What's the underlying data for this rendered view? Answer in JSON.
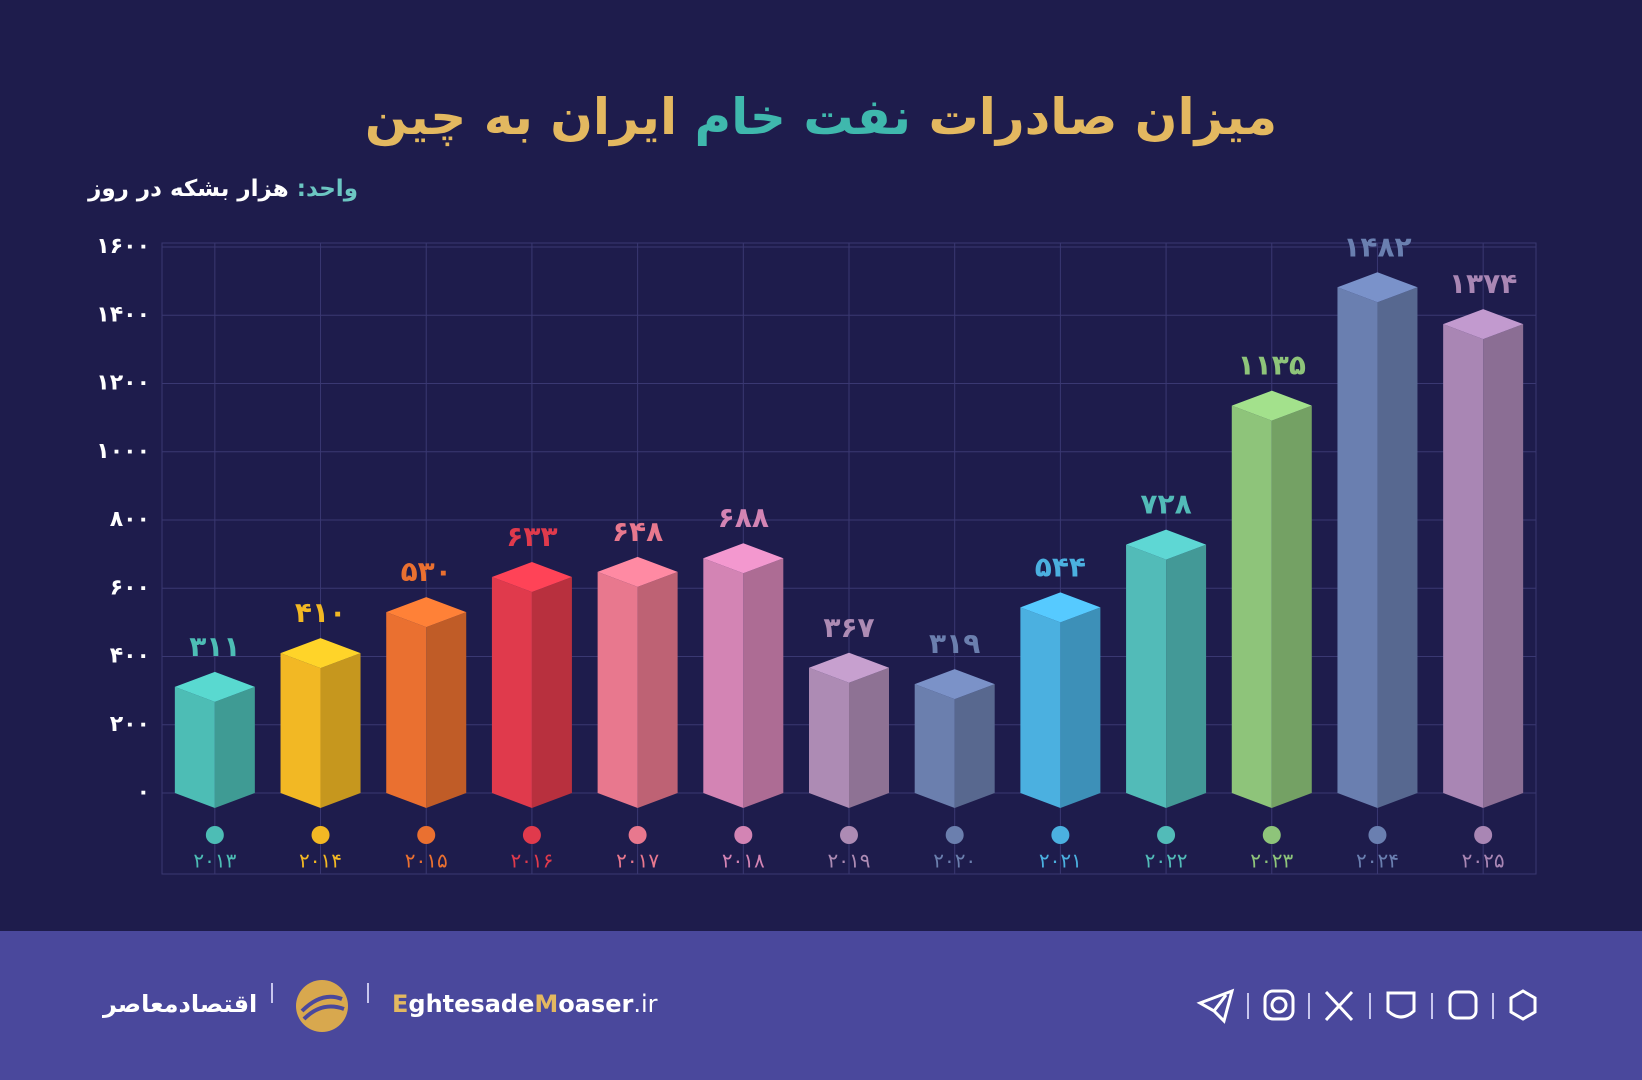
{
  "chart_data": {
    "type": "bar",
    "title_parts": [
      "میزان صادرات ",
      "نفت خام",
      " ایران به چین"
    ],
    "unit_label": "واحد:",
    "unit": "هزار بشکه در روز",
    "categories": [
      "۲۰۱۳",
      "۲۰۱۴",
      "۲۰۱۵",
      "۲۰۱۶",
      "۲۰۱۷",
      "۲۰۱۸",
      "۲۰۱۹",
      "۲۰۲۰",
      "۲۰۲۱",
      "۲۰۲۲",
      "۲۰۲۳",
      "۲۰۲۴",
      "۲۰۲۵"
    ],
    "values": [
      311,
      410,
      530,
      633,
      648,
      688,
      367,
      319,
      544,
      728,
      1135,
      1482,
      1374
    ],
    "value_labels": [
      "۳۱۱",
      "۴۱۰",
      "۵۳۰",
      "۶۳۳",
      "۶۴۸",
      "۶۸۸",
      "۳۶۷",
      "۳۱۹",
      "۵۴۴",
      "۷۲۸",
      "۱۱۳۵",
      "۱۴۸۲",
      "۱۳۷۴"
    ],
    "colors": [
      "#4dbdb5",
      "#f2b824",
      "#ea7030",
      "#e03a4c",
      "#e8788e",
      "#d384b4",
      "#ad8bb4",
      "#6b7fae",
      "#4bb0e0",
      "#52bbb8",
      "#8ec47a",
      "#6a7fb0",
      "#a986b4"
    ],
    "ylim": [
      0,
      1600
    ],
    "yticks": [
      {
        "value": 0,
        "label": "۰"
      },
      {
        "value": 200,
        "label": "۲۰۰"
      },
      {
        "value": 400,
        "label": "۴۰۰"
      },
      {
        "value": 600,
        "label": "۶۰۰"
      },
      {
        "value": 800,
        "label": "۸۰۰"
      },
      {
        "value": 1000,
        "label": "۱۰۰۰"
      },
      {
        "value": 1200,
        "label": "۱۲۰۰"
      },
      {
        "value": 1400,
        "label": "۱۴۰۰"
      },
      {
        "value": 1600,
        "label": "۱۶۰۰"
      }
    ],
    "grid": true
  },
  "footer": {
    "brand": "اقتصادمعاصر",
    "site_parts": [
      "E",
      "ghtesade",
      "M",
      "oaser",
      ".ir"
    ]
  }
}
